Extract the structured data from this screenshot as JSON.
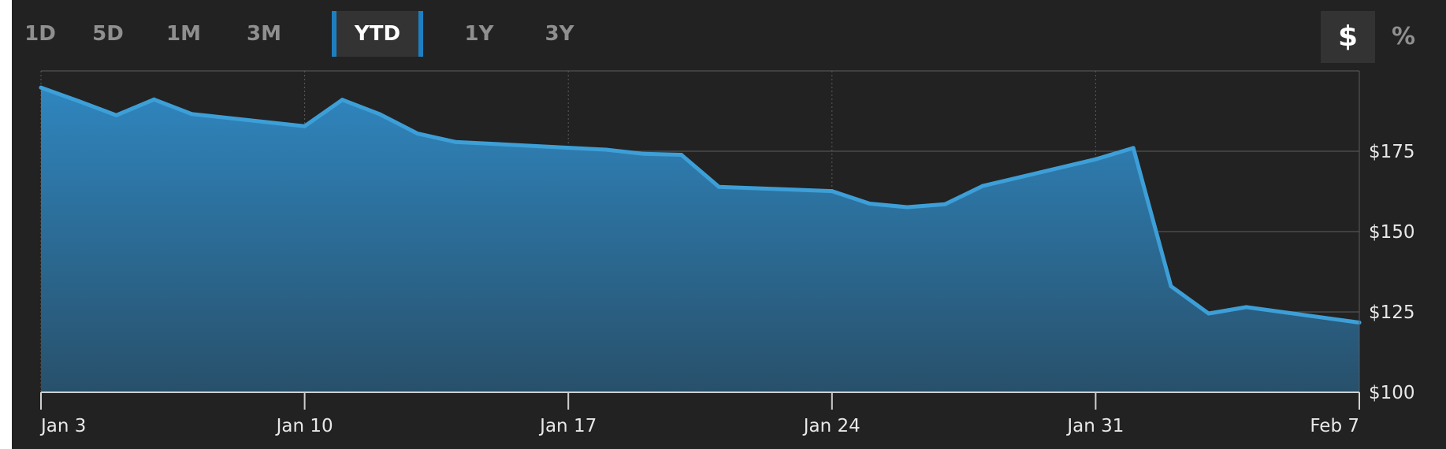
{
  "range_selector": {
    "buttons": [
      "1D",
      "5D",
      "1M",
      "3M",
      "YTD",
      "1Y",
      "3Y"
    ],
    "active": "YTD"
  },
  "unit_toggle": {
    "dollar_label": "$",
    "percent_label": "%",
    "active": "$"
  },
  "colors": {
    "background": "#222222",
    "line": "#3d9fd8",
    "fill_top": "#2f86bf",
    "fill_bottom": "#28506b",
    "grid": "#4a4a4a",
    "accent": "#1e7fc0"
  },
  "chart_data": {
    "type": "area",
    "title": "",
    "xlabel": "",
    "ylabel": "",
    "ylim": [
      100,
      200
    ],
    "y_ticks": [
      100,
      125,
      150,
      175
    ],
    "y_tick_labels": [
      "$100",
      "$125",
      "$150",
      "$175"
    ],
    "x_ticks": [
      "Jan 3",
      "Jan 10",
      "Jan 17",
      "Jan 24",
      "Jan 31",
      "Feb 7"
    ],
    "x_range": [
      "2022-01-03",
      "2022-02-07"
    ],
    "grid": true,
    "legend": "none",
    "series": [
      {
        "x": [
          "2022-01-03",
          "2022-01-04",
          "2022-01-05",
          "2022-01-06",
          "2022-01-07",
          "2022-01-10",
          "2022-01-11",
          "2022-01-12",
          "2022-01-13",
          "2022-01-14",
          "2022-01-18",
          "2022-01-19",
          "2022-01-20",
          "2022-01-21",
          "2022-01-24",
          "2022-01-25",
          "2022-01-26",
          "2022-01-27",
          "2022-01-28",
          "2022-01-31",
          "2022-02-01",
          "2022-02-02",
          "2022-02-03",
          "2022-02-04",
          "2022-02-07"
        ],
        "values": [
          194.8,
          190.6,
          186.2,
          191.1,
          186.6,
          182.8,
          191.0,
          186.5,
          180.5,
          177.9,
          175.5,
          174.2,
          173.9,
          163.9,
          162.6,
          158.7,
          157.6,
          158.5,
          164.2,
          172.5,
          176.0,
          133.0,
          124.5,
          126.5,
          121.7
        ]
      }
    ]
  }
}
